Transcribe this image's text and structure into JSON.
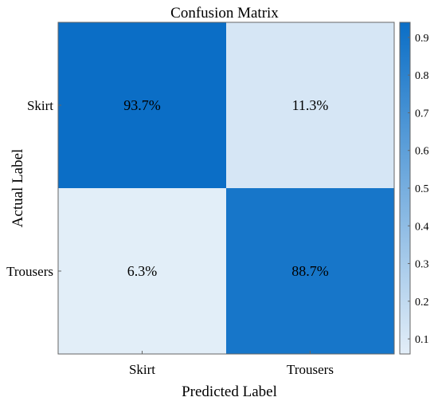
{
  "chart_data": {
    "type": "heatmap",
    "title": "Confusion Matrix",
    "xlabel": "Predicted Label",
    "ylabel": "Actual Label",
    "x_categories": [
      "Skirt",
      "Trousers"
    ],
    "y_categories": [
      "Skirt",
      "Trousers"
    ],
    "values": [
      [
        0.937,
        0.113
      ],
      [
        0.063,
        0.887
      ]
    ],
    "cell_labels": [
      [
        "93.7%",
        "11.3%"
      ],
      [
        "6.3%",
        "88.7%"
      ]
    ],
    "colorbar": {
      "range": [
        0.06,
        0.94
      ],
      "ticks": [
        "0.1",
        "0.2",
        "0.3",
        "0.4",
        "0.5",
        "0.6",
        "0.7",
        "0.8",
        "0.9"
      ],
      "tick_values": [
        0.1,
        0.2,
        0.3,
        0.4,
        0.5,
        0.6,
        0.7,
        0.8,
        0.9
      ],
      "color_low": "#e3eef8",
      "color_high": "#0a6ec6"
    }
  }
}
